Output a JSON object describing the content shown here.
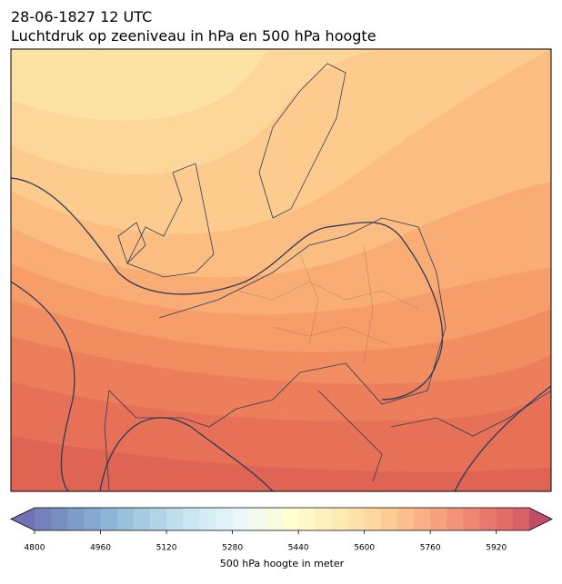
{
  "title": "28-06-1827 12 UTC",
  "subtitle": "Luchtdruk op zeeniveau in hPa en 500 hPa hoogte",
  "colorbar": {
    "label": "500 hPa hoogte in meter",
    "xlim": [
      4800,
      6000
    ],
    "xticks": [
      4800,
      4960,
      5120,
      5280,
      5440,
      5600,
      5760,
      5920
    ],
    "levels": [
      4800,
      4840,
      4880,
      4920,
      4960,
      5000,
      5040,
      5080,
      5120,
      5160,
      5200,
      5240,
      5280,
      5320,
      5360,
      5400,
      5440,
      5480,
      5520,
      5560,
      5600,
      5640,
      5680,
      5720,
      5760,
      5800,
      5840,
      5880,
      5920,
      5960,
      6000
    ],
    "colormap": [
      "#313695",
      "#4575b4",
      "#74add1",
      "#abd9e9",
      "#e0f3f8",
      "#ffffbf",
      "#fee090",
      "#fdae61",
      "#f46d43",
      "#d73027",
      "#a50026"
    ],
    "alpha": 0.7,
    "extend": "both"
  }
}
